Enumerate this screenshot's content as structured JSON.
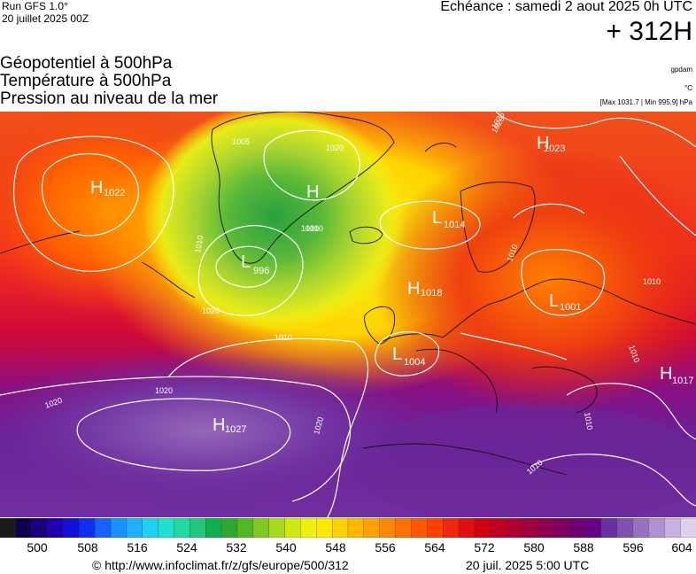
{
  "header": {
    "run_label": "Run GFS 1.0°",
    "run_date": "20 juillet 2025 00Z",
    "echeance": "Echéance : samedi 2 aout 2025 0h UTC",
    "lead_time": "+ 312H"
  },
  "titles": [
    "Géopotentiel à 500hPa",
    "Température à 500hPa",
    "Pression au niveau de la mer"
  ],
  "units": {
    "geopotential": "gpdam",
    "temperature": "°C",
    "pressure_range": "[Max 1031.7 | Min 995.9] hPa"
  },
  "legend": {
    "labels": [
      "500",
      "508",
      "516",
      "524",
      "532",
      "540",
      "548",
      "556",
      "564",
      "572",
      "580",
      "588",
      "596",
      "604"
    ],
    "colors": [
      "#1a1a1a",
      "#0d0050",
      "#1a0080",
      "#2000b0",
      "#1010d8",
      "#1030f0",
      "#1860ff",
      "#1890ff",
      "#20b0ff",
      "#20d0f0",
      "#20e0d0",
      "#20d8a0",
      "#20c878",
      "#10b050",
      "#30a830",
      "#50b820",
      "#80c820",
      "#a8d820",
      "#d0e810",
      "#f0f010",
      "#ffe800",
      "#ffd000",
      "#ffb800",
      "#ffa000",
      "#ff8800",
      "#ff7000",
      "#ff5800",
      "#ff4000",
      "#f02810",
      "#e01010",
      "#d00010",
      "#c00020",
      "#b00030",
      "#a00040",
      "#900050",
      "#800060",
      "#700070",
      "#680088",
      "#6830a0",
      "#8050b0",
      "#9870c0",
      "#b090d0",
      "#c8b0e0",
      "#e0d0ee"
    ]
  },
  "map": {
    "pressure_systems": [
      {
        "type": "H",
        "value": "1022"
      },
      {
        "type": "L",
        "value": "996"
      },
      {
        "type": "H",
        "value": ""
      },
      {
        "type": "L",
        "value": "1014"
      },
      {
        "type": "H",
        "value": "1023"
      },
      {
        "type": "H",
        "value": "1018"
      },
      {
        "type": "L",
        "value": "1001"
      },
      {
        "type": "L",
        "value": "1004"
      },
      {
        "type": "H",
        "value": "1017"
      },
      {
        "type": "H",
        "value": "1027"
      }
    ],
    "isobar_labels": [
      "1005",
      "1020",
      "1010",
      "1010",
      "1010",
      "1010",
      "1020",
      "1020",
      "1010",
      "1010",
      "1020",
      "1010",
      "1010",
      "1010",
      "1020",
      "1020",
      "1025"
    ]
  },
  "footer": {
    "copyright": "© http://www.infoclimat.fr/z/gfs/europe/500/312",
    "issue_time": "20 juil. 2025  5:00 UTC"
  }
}
